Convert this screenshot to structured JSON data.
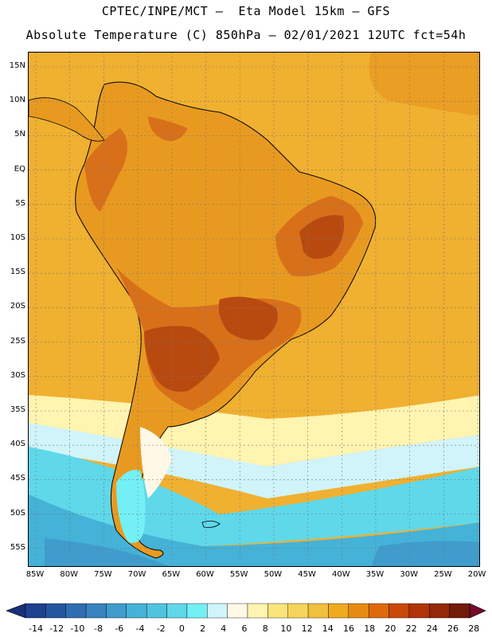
{
  "header": {
    "line1": "CPTEC/INPE/MCT –  Eta Model 15km – GFS",
    "line2": "Absolute Temperature (C) 850hPa – 02/01/2021 12UTC fct=54h"
  },
  "map": {
    "lat_labels": [
      "15N",
      "10N",
      "5N",
      "EQ",
      "5S",
      "10S",
      "15S",
      "20S",
      "25S",
      "30S",
      "35S",
      "40S",
      "45S",
      "50S",
      "55S"
    ],
    "lon_labels": [
      "85W",
      "80W",
      "75W",
      "70W",
      "65W",
      "60W",
      "55W",
      "50W",
      "45W",
      "40W",
      "35W",
      "30W",
      "25W",
      "20W"
    ],
    "ocean_color": "#f0b030",
    "land_colors": {
      "warm": "#e89a20",
      "hot": "#d8701a",
      "hottest": "#b84a10"
    }
  },
  "colorbar": {
    "labels": [
      "-14",
      "-12",
      "-10",
      "-8",
      "-6",
      "-4",
      "-2",
      "0",
      "2",
      "4",
      "6",
      "8",
      "10",
      "12",
      "14",
      "16",
      "18",
      "20",
      "22",
      "24",
      "26",
      "28"
    ],
    "colors": [
      "#1f3f8f",
      "#2456a0",
      "#2f6db2",
      "#3983c0",
      "#3f9ccc",
      "#45b2d8",
      "#4fc4e0",
      "#5fd8ea",
      "#73f0f5",
      "#d0f4fa",
      "#fff8e6",
      "#fff4b0",
      "#fbe57a",
      "#f6d55a",
      "#f1c03c",
      "#efab1e",
      "#e78b10",
      "#de6a0c",
      "#c9480a",
      "#b03408",
      "#942808",
      "#741a08"
    ],
    "low_color": "#1a2f7a",
    "high_color": "#740a2a"
  }
}
